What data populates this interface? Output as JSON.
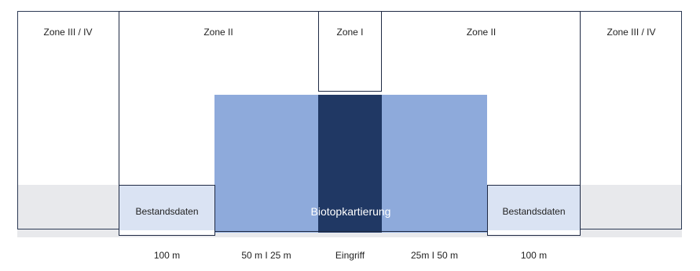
{
  "zones": {
    "outer_left": "Zone III / IV",
    "left": "Zone II",
    "center": "Zone I",
    "right": "Zone II",
    "outer_right": "Zone III / IV"
  },
  "areas": {
    "biotop": "Biotopkartierung",
    "bestand_left": "Bestandsdaten",
    "bestand_right": "Bestandsdaten"
  },
  "distances": [
    "100 m",
    "50 m I 25 m",
    "Eingriff",
    "25m I 50 m",
    "100 m"
  ],
  "colors": {
    "light_blue": "#8eaadb",
    "dark_blue": "#203864",
    "pale_blue": "#dae3f3",
    "grey_band": "#e8e9ec",
    "border": "#1f2a44"
  }
}
